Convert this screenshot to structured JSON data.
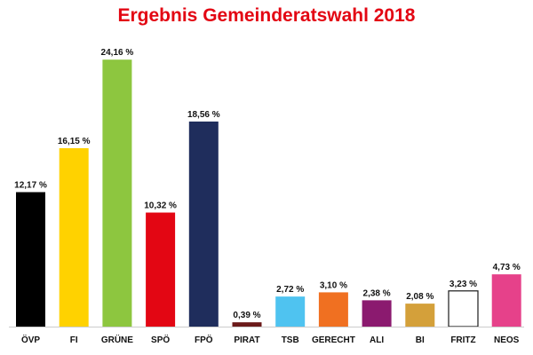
{
  "chart_data": {
    "type": "bar",
    "title": "Ergebnis Gemeinderatswahl 2018",
    "xlabel": "",
    "ylabel": "",
    "ylim": [
      0,
      25
    ],
    "grid": false,
    "legend": "none",
    "categories": [
      "ÖVP",
      "FI",
      "GRÜNE",
      "SPÖ",
      "FPÖ",
      "PIRAT",
      "TSB",
      "GERECHT",
      "ALI",
      "BI",
      "FRITZ",
      "NEOS"
    ],
    "values": [
      12.17,
      16.15,
      24.16,
      10.32,
      18.56,
      0.39,
      2.72,
      3.1,
      2.38,
      2.08,
      3.23,
      4.73
    ],
    "value_labels": [
      "12,17 %",
      "16,15 %",
      "24,16 %",
      "10,32 %",
      "18,56 %",
      "0,39 %",
      "2,72 %",
      "3,10 %",
      "2,38 %",
      "2,08 %",
      "3,23 %",
      "4,73 %"
    ],
    "colors": [
      "#000000",
      "#ffd200",
      "#8dc63f",
      "#e30613",
      "#1f2d5c",
      "#6b1a1a",
      "#4fc3f0",
      "#f07021",
      "#8b1a6f",
      "#d4a03a",
      "#ffffff",
      "#e6418a"
    ],
    "outline_color": "#1a1a1a"
  }
}
